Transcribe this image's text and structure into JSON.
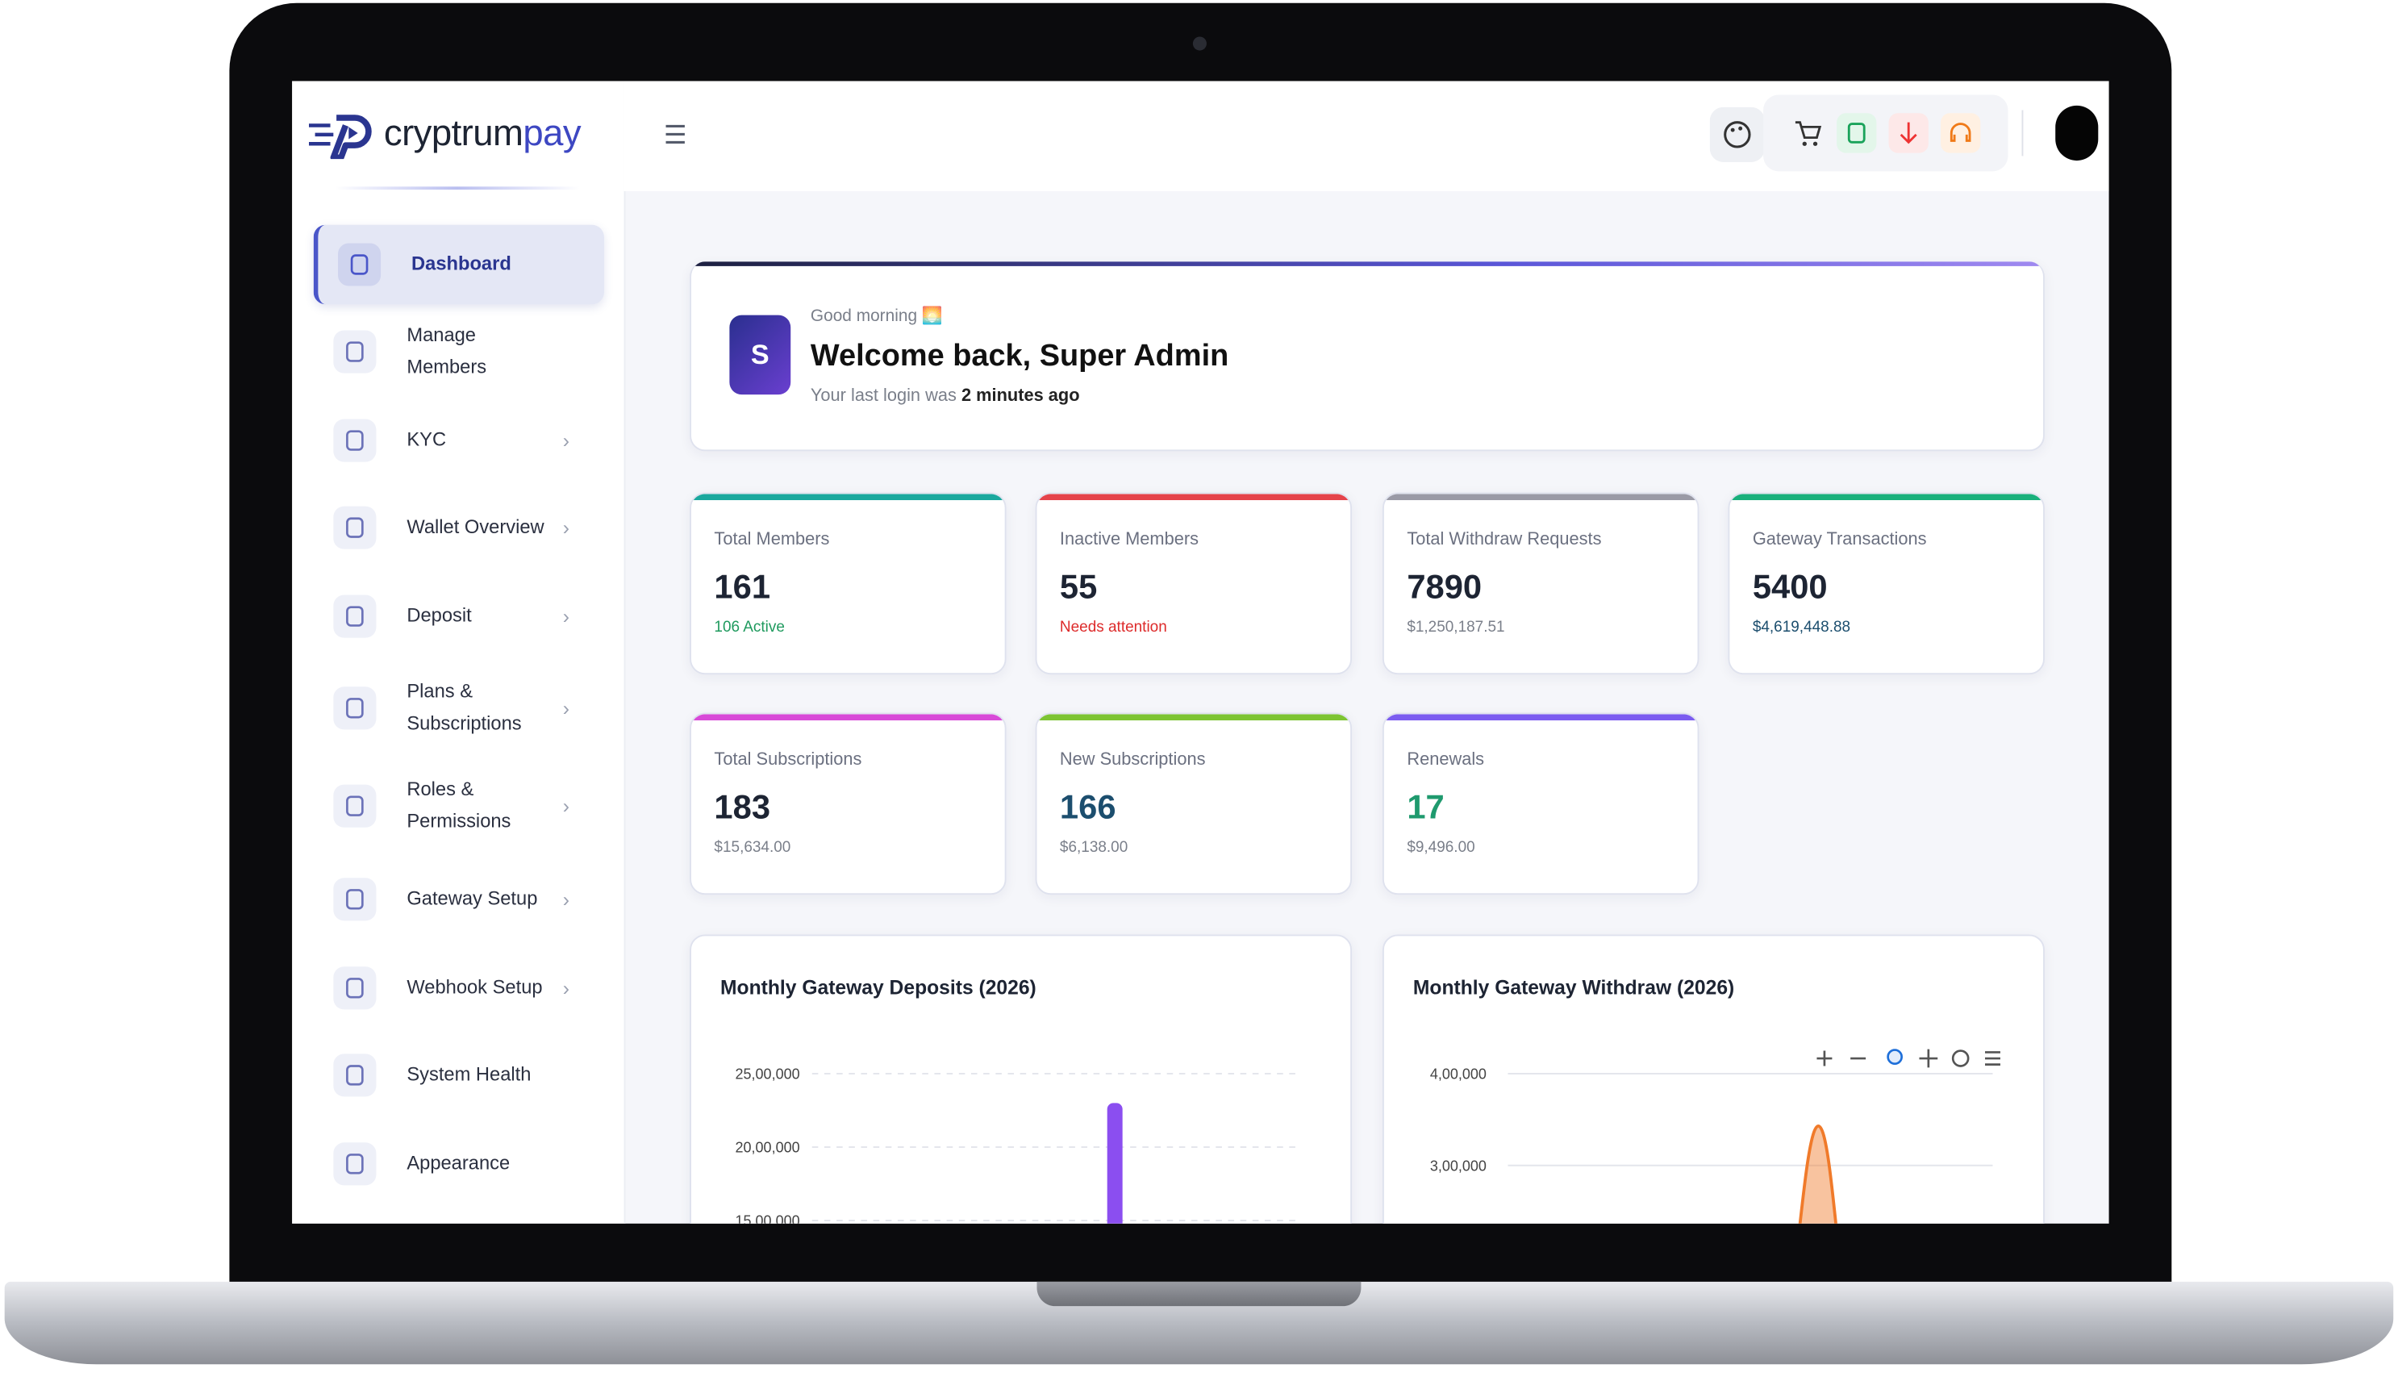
{
  "logo": {
    "brand_dark": "cryptrum",
    "brand_accent": "pay"
  },
  "sidebar": [
    {
      "label": "Dashboard",
      "active": true,
      "submenu": false
    },
    {
      "label": "Manage Members",
      "active": false,
      "submenu": false
    },
    {
      "label": "KYC",
      "active": false,
      "submenu": true
    },
    {
      "label": "Wallet Overview",
      "active": false,
      "submenu": true
    },
    {
      "label": "Deposit",
      "active": false,
      "submenu": true
    },
    {
      "label": "Plans & Subscriptions",
      "active": false,
      "submenu": true
    },
    {
      "label": "Roles & Permissions",
      "active": false,
      "submenu": true
    },
    {
      "label": "Gateway Setup",
      "active": false,
      "submenu": true
    },
    {
      "label": "Webhook Setup",
      "active": false,
      "submenu": true
    },
    {
      "label": "System Health",
      "active": false,
      "submenu": false
    },
    {
      "label": "Appearance",
      "active": false,
      "submenu": false
    }
  ],
  "welcome": {
    "avatar": "S",
    "greeting": "Good morning 🌅",
    "title": "Welcome back, Super Admin",
    "last_login_prefix": "Your last login was",
    "last_login": "2 minutes ago"
  },
  "stats": [
    {
      "label": "Total Members",
      "value": 161,
      "note": "106 Active",
      "accent": "#1aa89e",
      "value_color": "#1d2433",
      "note_color": "#1f9a5e"
    },
    {
      "label": "Inactive Members",
      "value": 55,
      "note": "Needs attention",
      "accent": "#e5434b",
      "value_color": "#1d2433",
      "note_color": "#dd2a2a"
    },
    {
      "label": "Total Withdraw Requests",
      "value": 7890,
      "note": "$1,250,187.51",
      "accent": "#9a9aa6",
      "value_color": "#1d2433",
      "note_color": "#7a7f8a"
    },
    {
      "label": "Gateway Transactions",
      "value": 5400,
      "note": "$4,619,448.88",
      "accent": "#19b07c",
      "value_color": "#1d2433",
      "note_color": "#1c4e6e"
    },
    {
      "label": "Total Subscriptions",
      "value": 183,
      "note": "$15,634.00",
      "accent": "#d84ad8",
      "value_color": "#1d2433",
      "note_color": "#7a7f8a"
    },
    {
      "label": "New Subscriptions",
      "value": 166,
      "note": "$6,138.00",
      "accent": "#7dc433",
      "value_color": "#1c4e6e",
      "note_color": "#7a7f8a"
    },
    {
      "label": "Renewals",
      "value": 17,
      "note": "$9,496.00",
      "accent": "#7b5cf0",
      "value_color": "#1f9a6e",
      "note_color": "#7a7f8a"
    }
  ],
  "charts": [
    {
      "type": "bar",
      "title": "Monthly Gateway Deposits (2026)",
      "color": "#8b4ef0",
      "values": [
        2300000
      ],
      "ylim": [
        0,
        2500000
      ],
      "yticks": [
        {
          "value": 2500000,
          "label": "25,00,000"
        },
        {
          "value": 2000000,
          "label": "20,00,000"
        },
        {
          "value": 1500000,
          "label": "15,00,000"
        }
      ]
    },
    {
      "type": "area",
      "title": "Monthly Gateway Withdraw (2026)",
      "color": "#f07a2a",
      "values": [
        343000
      ],
      "ylim": [
        0,
        400000
      ],
      "yticks": [
        {
          "value": 400000,
          "label": "4,00,000"
        },
        {
          "value": 300000,
          "label": "3,00,000"
        }
      ]
    }
  ]
}
